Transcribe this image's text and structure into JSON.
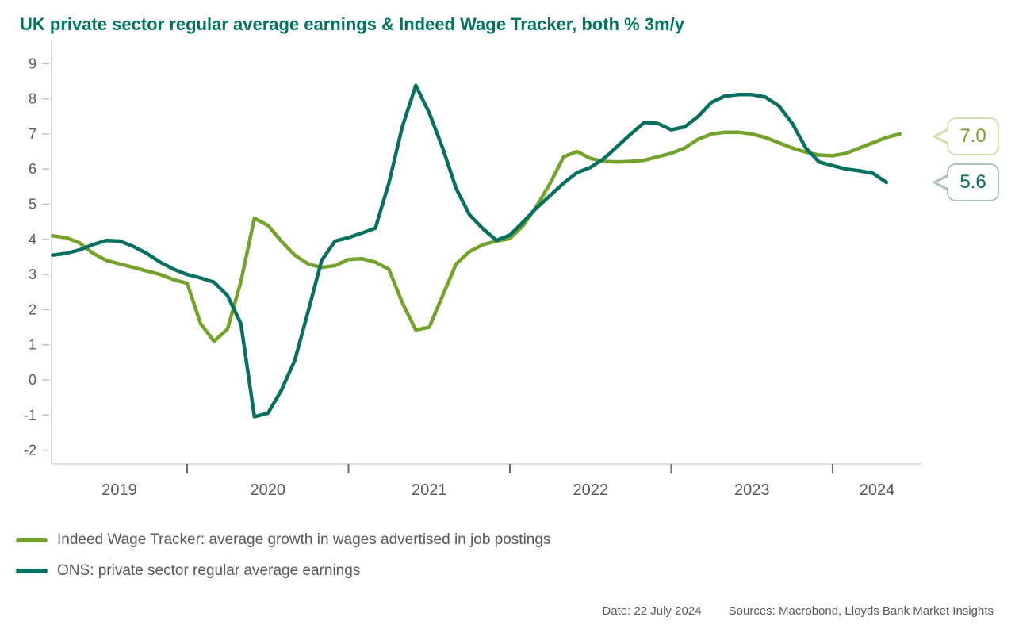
{
  "title": "UK private sector regular average earnings & Indeed Wage Tracker, both % 3m/y",
  "chart_data": {
    "type": "line",
    "title": "UK private sector regular average earnings & Indeed Wage Tracker, both % 3m/y",
    "unit": "% 3m/y",
    "grid": false,
    "legend_position": "bottom-left",
    "x_axis": {
      "start": "2019-03",
      "frequency": "monthly",
      "year_labels": [
        "2019",
        "2020",
        "2021",
        "2022",
        "2023",
        "2024"
      ]
    },
    "y_axis": {
      "min": -2,
      "max": 9,
      "tick_step": 1,
      "tick_labels": [
        "9",
        "8",
        "7",
        "6",
        "5",
        "4",
        "3",
        "2",
        "1",
        "0",
        "-1",
        "-2"
      ]
    },
    "series": [
      {
        "key": "indeed",
        "name": "Indeed Wage Tracker: average growth in wages advertised in job postings",
        "color": "#74a32b",
        "start": "2019-03",
        "end": "2024-06",
        "callout": {
          "label": "7.0",
          "border": "#cfe2ad"
        },
        "values": [
          4.1,
          4.05,
          3.9,
          3.6,
          3.4,
          3.3,
          3.2,
          3.1,
          3.0,
          2.85,
          2.75,
          1.6,
          1.1,
          1.45,
          2.8,
          4.6,
          4.4,
          3.95,
          3.55,
          3.3,
          3.2,
          3.25,
          3.43,
          3.45,
          3.35,
          3.15,
          2.2,
          1.42,
          1.5,
          2.4,
          3.3,
          3.65,
          3.85,
          3.95,
          4.02,
          4.4,
          4.95,
          5.6,
          6.35,
          6.5,
          6.3,
          6.22,
          6.2,
          6.22,
          6.25,
          6.35,
          6.45,
          6.6,
          6.85,
          7.0,
          7.05,
          7.05,
          7.0,
          6.9,
          6.75,
          6.6,
          6.48,
          6.4,
          6.38,
          6.45,
          6.6,
          6.75,
          6.9,
          7.0
        ]
      },
      {
        "key": "ons",
        "name": "ONS: private sector regular average earnings",
        "color": "#077060",
        "start": "2019-03",
        "end": "2024-05",
        "callout": {
          "label": "5.6",
          "border": "#a8c4bc"
        },
        "values": [
          3.55,
          3.6,
          3.7,
          3.85,
          3.97,
          3.95,
          3.8,
          3.6,
          3.35,
          3.15,
          3.0,
          2.9,
          2.78,
          2.4,
          1.6,
          -1.05,
          -0.95,
          -0.3,
          0.55,
          1.95,
          3.4,
          3.95,
          4.05,
          4.18,
          4.32,
          5.6,
          7.2,
          8.38,
          7.6,
          6.6,
          5.45,
          4.7,
          4.3,
          3.97,
          4.12,
          4.5,
          4.9,
          5.25,
          5.6,
          5.9,
          6.05,
          6.3,
          6.65,
          7.0,
          7.33,
          7.3,
          7.12,
          7.2,
          7.5,
          7.9,
          8.08,
          8.12,
          8.12,
          8.05,
          7.8,
          7.3,
          6.6,
          6.2,
          6.1,
          6.0,
          5.95,
          5.88,
          5.62
        ]
      }
    ]
  },
  "footer": {
    "date_label": "Date: 22 July 2024",
    "sources_label": "Sources: Macrobond, Lloyds Bank Market Insights"
  }
}
